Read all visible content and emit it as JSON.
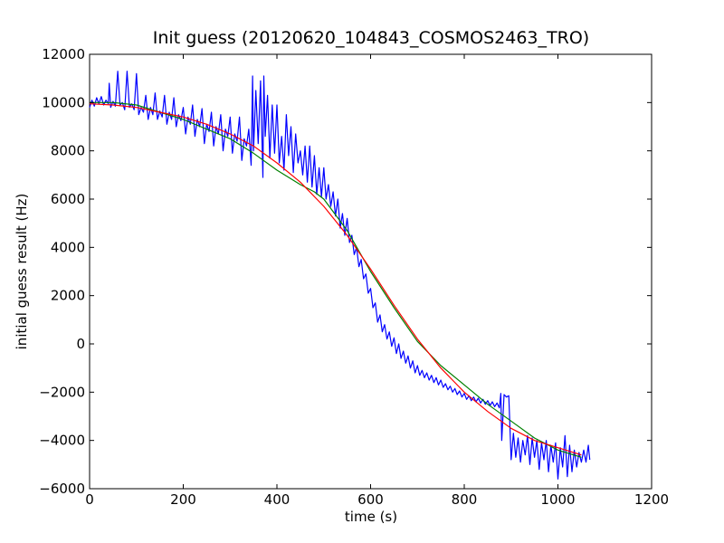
{
  "chart_data": {
    "type": "line",
    "title": "Init guess (20120620_104843_COSMOS2463_TRO)",
    "xlabel": "time (s)",
    "ylabel": "initial guess result (Hz)",
    "xlim": [
      0,
      1200
    ],
    "ylim": [
      -6000,
      12000
    ],
    "x_ticks": [
      0,
      200,
      400,
      600,
      800,
      1000,
      1200
    ],
    "y_ticks": [
      -6000,
      -4000,
      -2000,
      0,
      2000,
      4000,
      6000,
      8000,
      10000,
      12000
    ],
    "x_tick_labels": [
      "0",
      "200",
      "400",
      "600",
      "800",
      "1000",
      "1200"
    ],
    "y_tick_labels": [
      "−6000",
      "−4000",
      "−2000",
      "0",
      "2000",
      "4000",
      "6000",
      "8000",
      "10000",
      "12000"
    ],
    "grid": false,
    "legend": "none",
    "series": [
      {
        "color": "#0000ff",
        "points": [
          [
            0,
            9800
          ],
          [
            5,
            10100
          ],
          [
            10,
            9850
          ],
          [
            15,
            10200
          ],
          [
            20,
            9950
          ],
          [
            25,
            10250
          ],
          [
            30,
            9900
          ],
          [
            35,
            10100
          ],
          [
            40,
            9950
          ],
          [
            42,
            10800
          ],
          [
            45,
            9800
          ],
          [
            50,
            10050
          ],
          [
            55,
            9850
          ],
          [
            60,
            11300
          ],
          [
            65,
            9900
          ],
          [
            70,
            10000
          ],
          [
            75,
            9700
          ],
          [
            80,
            11300
          ],
          [
            85,
            9800
          ],
          [
            90,
            9950
          ],
          [
            95,
            9700
          ],
          [
            100,
            11200
          ],
          [
            105,
            9500
          ],
          [
            110,
            9800
          ],
          [
            115,
            9600
          ],
          [
            120,
            10300
          ],
          [
            125,
            9300
          ],
          [
            130,
            9800
          ],
          [
            135,
            9500
          ],
          [
            140,
            10400
          ],
          [
            145,
            9300
          ],
          [
            150,
            9650
          ],
          [
            155,
            9400
          ],
          [
            160,
            10300
          ],
          [
            165,
            9100
          ],
          [
            170,
            9600
          ],
          [
            175,
            9300
          ],
          [
            180,
            10200
          ],
          [
            185,
            9000
          ],
          [
            190,
            9500
          ],
          [
            195,
            9250
          ],
          [
            200,
            9800
          ],
          [
            205,
            8700
          ],
          [
            210,
            9400
          ],
          [
            215,
            9100
          ],
          [
            220,
            9900
          ],
          [
            225,
            8600
          ],
          [
            230,
            9300
          ],
          [
            235,
            9000
          ],
          [
            240,
            9750
          ],
          [
            245,
            8300
          ],
          [
            250,
            9100
          ],
          [
            255,
            8800
          ],
          [
            260,
            9600
          ],
          [
            265,
            8200
          ],
          [
            270,
            9000
          ],
          [
            275,
            8700
          ],
          [
            280,
            9500
          ],
          [
            285,
            8000
          ],
          [
            290,
            8900
          ],
          [
            295,
            8600
          ],
          [
            300,
            9400
          ],
          [
            305,
            7900
          ],
          [
            310,
            8700
          ],
          [
            315,
            8400
          ],
          [
            320,
            9400
          ],
          [
            325,
            7600
          ],
          [
            330,
            8500
          ],
          [
            335,
            8200
          ],
          [
            340,
            8900
          ],
          [
            345,
            7400
          ],
          [
            348,
            11100
          ],
          [
            350,
            8000
          ],
          [
            355,
            10500
          ],
          [
            360,
            8300
          ],
          [
            365,
            10900
          ],
          [
            370,
            6900
          ],
          [
            372,
            11100
          ],
          [
            375,
            8600
          ],
          [
            380,
            10300
          ],
          [
            385,
            7700
          ],
          [
            390,
            9900
          ],
          [
            395,
            7900
          ],
          [
            400,
            9900
          ],
          [
            405,
            7500
          ],
          [
            410,
            8600
          ],
          [
            415,
            7200
          ],
          [
            420,
            9500
          ],
          [
            425,
            7800
          ],
          [
            430,
            9000
          ],
          [
            435,
            7100
          ],
          [
            440,
            8700
          ],
          [
            445,
            7500
          ],
          [
            450,
            8000
          ],
          [
            455,
            7000
          ],
          [
            460,
            8200
          ],
          [
            465,
            6700
          ],
          [
            470,
            8200
          ],
          [
            475,
            6500
          ],
          [
            480,
            7800
          ],
          [
            485,
            6200
          ],
          [
            490,
            7300
          ],
          [
            495,
            6100
          ],
          [
            500,
            7300
          ],
          [
            505,
            6000
          ],
          [
            510,
            6600
          ],
          [
            515,
            5700
          ],
          [
            520,
            6300
          ],
          [
            525,
            5300
          ],
          [
            530,
            6000
          ],
          [
            535,
            4800
          ],
          [
            540,
            5400
          ],
          [
            545,
            4500
          ],
          [
            550,
            5200
          ],
          [
            555,
            4200
          ],
          [
            560,
            4500
          ],
          [
            565,
            3700
          ],
          [
            570,
            4000
          ],
          [
            575,
            3200
          ],
          [
            580,
            3500
          ],
          [
            585,
            2700
          ],
          [
            590,
            2900
          ],
          [
            595,
            2100
          ],
          [
            600,
            2300
          ],
          [
            605,
            1500
          ],
          [
            610,
            1700
          ],
          [
            615,
            900
          ],
          [
            620,
            1200
          ],
          [
            625,
            500
          ],
          [
            630,
            800
          ],
          [
            635,
            200
          ],
          [
            640,
            500
          ],
          [
            645,
            -100
          ],
          [
            650,
            250
          ],
          [
            655,
            -400
          ],
          [
            660,
            0
          ],
          [
            665,
            -600
          ],
          [
            670,
            -300
          ],
          [
            675,
            -800
          ],
          [
            680,
            -500
          ],
          [
            685,
            -1000
          ],
          [
            690,
            -700
          ],
          [
            695,
            -1200
          ],
          [
            700,
            -900
          ],
          [
            705,
            -1300
          ],
          [
            710,
            -1100
          ],
          [
            715,
            -1400
          ],
          [
            720,
            -1200
          ],
          [
            725,
            -1500
          ],
          [
            730,
            -1300
          ],
          [
            735,
            -1600
          ],
          [
            740,
            -1400
          ],
          [
            745,
            -1700
          ],
          [
            750,
            -1500
          ],
          [
            755,
            -1800
          ],
          [
            760,
            -1650
          ],
          [
            765,
            -1900
          ],
          [
            770,
            -1750
          ],
          [
            775,
            -2000
          ],
          [
            780,
            -1850
          ],
          [
            785,
            -2100
          ],
          [
            790,
            -1950
          ],
          [
            795,
            -2200
          ],
          [
            800,
            -2050
          ],
          [
            805,
            -2300
          ],
          [
            810,
            -2150
          ],
          [
            815,
            -2350
          ],
          [
            820,
            -2200
          ],
          [
            825,
            -2400
          ],
          [
            830,
            -2250
          ],
          [
            835,
            -2450
          ],
          [
            840,
            -2300
          ],
          [
            845,
            -2500
          ],
          [
            850,
            -2350
          ],
          [
            855,
            -2550
          ],
          [
            860,
            -2400
          ],
          [
            865,
            -2600
          ],
          [
            870,
            -2450
          ],
          [
            875,
            -2650
          ],
          [
            878,
            -2050
          ],
          [
            880,
            -4000
          ],
          [
            885,
            -2100
          ],
          [
            890,
            -2200
          ],
          [
            895,
            -2150
          ],
          [
            900,
            -4800
          ],
          [
            905,
            -3700
          ],
          [
            910,
            -4700
          ],
          [
            915,
            -3900
          ],
          [
            920,
            -4900
          ],
          [
            925,
            -4000
          ],
          [
            930,
            -4600
          ],
          [
            935,
            -3800
          ],
          [
            940,
            -5000
          ],
          [
            945,
            -3900
          ],
          [
            950,
            -4700
          ],
          [
            955,
            -4000
          ],
          [
            960,
            -5200
          ],
          [
            965,
            -4100
          ],
          [
            970,
            -4800
          ],
          [
            975,
            -4000
          ],
          [
            980,
            -5300
          ],
          [
            985,
            -4200
          ],
          [
            990,
            -4900
          ],
          [
            995,
            -4100
          ],
          [
            1000,
            -5600
          ],
          [
            1005,
            -4300
          ],
          [
            1010,
            -5100
          ],
          [
            1015,
            -3800
          ],
          [
            1020,
            -5500
          ],
          [
            1025,
            -4200
          ],
          [
            1030,
            -5300
          ],
          [
            1035,
            -4400
          ],
          [
            1040,
            -5100
          ],
          [
            1045,
            -4500
          ],
          [
            1050,
            -4900
          ],
          [
            1055,
            -4400
          ],
          [
            1060,
            -4900
          ],
          [
            1065,
            -4200
          ],
          [
            1068,
            -4800
          ]
        ]
      },
      {
        "color": "#008000",
        "points": [
          [
            0,
            10000
          ],
          [
            50,
            10000
          ],
          [
            100,
            9900
          ],
          [
            150,
            9600
          ],
          [
            200,
            9300
          ],
          [
            250,
            8900
          ],
          [
            300,
            8500
          ],
          [
            350,
            7900
          ],
          [
            400,
            7200
          ],
          [
            450,
            6600
          ],
          [
            480,
            6300
          ],
          [
            500,
            6000
          ],
          [
            550,
            4700
          ],
          [
            600,
            3000
          ],
          [
            650,
            1500
          ],
          [
            700,
            100
          ],
          [
            750,
            -900
          ],
          [
            800,
            -1700
          ],
          [
            850,
            -2500
          ],
          [
            900,
            -3200
          ],
          [
            950,
            -3900
          ],
          [
            1000,
            -4400
          ],
          [
            1050,
            -4700
          ]
        ]
      },
      {
        "color": "#ff0000",
        "points": [
          [
            0,
            9950
          ],
          [
            50,
            9900
          ],
          [
            100,
            9800
          ],
          [
            150,
            9600
          ],
          [
            200,
            9400
          ],
          [
            250,
            9100
          ],
          [
            300,
            8700
          ],
          [
            350,
            8200
          ],
          [
            400,
            7500
          ],
          [
            450,
            6700
          ],
          [
            500,
            5700
          ],
          [
            550,
            4500
          ],
          [
            600,
            3100
          ],
          [
            650,
            1600
          ],
          [
            700,
            200
          ],
          [
            750,
            -1000
          ],
          [
            800,
            -2000
          ],
          [
            850,
            -2800
          ],
          [
            900,
            -3500
          ],
          [
            950,
            -4000
          ],
          [
            1000,
            -4300
          ],
          [
            1050,
            -4600
          ]
        ]
      }
    ]
  }
}
